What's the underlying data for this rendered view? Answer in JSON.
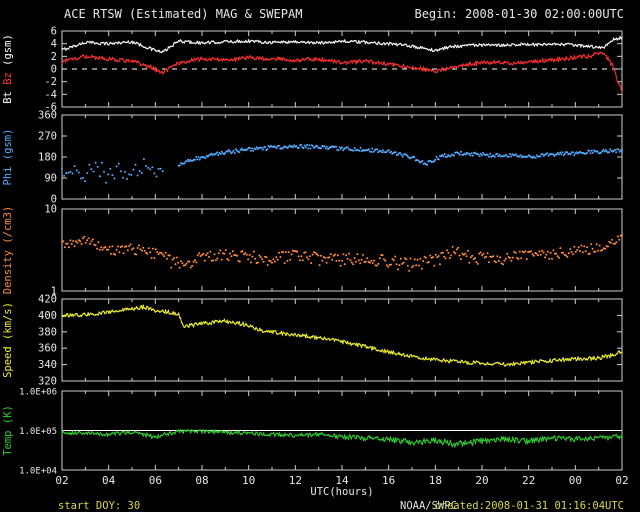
{
  "header": {
    "title": "ACE RTSW (Estimated) MAG & SWEPAM",
    "begin": "Begin: 2008-01-30 02:00:00UTC"
  },
  "footer": {
    "start_doy": "start DOY: 30",
    "source": "NOAA/SWPC",
    "created": "created:2008-01-31 01:16:04UTC"
  },
  "x_axis": {
    "label": "UTC(hours)",
    "min": 2,
    "max": 26,
    "tick_step": 2,
    "tick_labels": [
      "02",
      "04",
      "06",
      "08",
      "10",
      "12",
      "14",
      "16",
      "18",
      "20",
      "22",
      "00",
      "02"
    ]
  },
  "colors": {
    "background": "#000000",
    "axis": "#cfcfcf",
    "bt": "#f5f5f5",
    "bz": "#ff3030",
    "phi": "#55aaff",
    "density": "#ff8c3a",
    "speed": "#f0f030",
    "temp": "#33cc33"
  },
  "chart_data": [
    {
      "id": "bt_bz",
      "type": "line",
      "scale": "linear",
      "ylim": [
        -6,
        6
      ],
      "yticks": [
        {
          "v": 6,
          "label": "6"
        },
        {
          "v": 4,
          "label": "4"
        },
        {
          "v": 2,
          "label": "2"
        },
        {
          "v": 0,
          "label": "0"
        },
        {
          "v": -2,
          "label": "-2"
        },
        {
          "v": -4,
          "label": "-4"
        },
        {
          "v": -6,
          "label": "-6"
        }
      ],
      "axis_label_parts": [
        {
          "text": "Bt ",
          "color": "#ffffff"
        },
        {
          "text": "Bz ",
          "color": "#ff3030"
        },
        {
          "text": "(gsm)",
          "color": "#ffffff"
        }
      ],
      "reference_lines": [
        {
          "v": 0,
          "color": "#ffffff",
          "dash": "5,5"
        }
      ],
      "series": [
        {
          "name": "Bt",
          "color": "#f5f5f5",
          "style": "line",
          "segments": [
            {
              "x": [
                2,
                3,
                4,
                5,
                5.8,
                6.3,
                7,
                8,
                9,
                10,
                11,
                12,
                13,
                14,
                15,
                16,
                17,
                18,
                18.6,
                19.5,
                20.5,
                21.5,
                22.5,
                23.5,
                24.5,
                25.2,
                25.6,
                26
              ],
              "y": [
                3.0,
                4.2,
                4.0,
                4.3,
                3.2,
                2.6,
                4.4,
                4.1,
                4.3,
                4.4,
                4.2,
                4.3,
                4.1,
                4.4,
                4.2,
                4.0,
                3.6,
                2.9,
                3.5,
                3.8,
                3.7,
                3.9,
                3.8,
                3.9,
                3.6,
                3.3,
                4.6,
                5.0
              ],
              "noise": 0.22
            }
          ]
        },
        {
          "name": "Bz",
          "color": "#ff3030",
          "style": "line",
          "segments": [
            {
              "x": [
                2,
                3,
                4,
                5,
                5.8,
                6.3,
                7,
                8,
                9,
                10,
                11,
                12,
                13,
                14,
                15,
                16,
                17,
                18,
                18.6,
                19.5,
                20.5,
                21.5,
                22.5,
                23.5,
                24.5,
                25.2,
                25.6,
                26
              ],
              "y": [
                1.2,
                2.0,
                1.6,
                1.2,
                0.3,
                -0.6,
                1.0,
                1.6,
                1.4,
                1.8,
                1.6,
                1.4,
                1.6,
                1.0,
                1.2,
                0.8,
                0.3,
                -0.4,
                0.2,
                0.8,
                1.1,
                0.9,
                1.3,
                1.6,
                2.0,
                2.6,
                0.5,
                -3.8
              ],
              "noise": 0.3
            }
          ]
        }
      ]
    },
    {
      "id": "phi",
      "type": "scatter",
      "scale": "linear",
      "ylim": [
        0,
        360
      ],
      "yticks": [
        {
          "v": 360,
          "label": "360"
        },
        {
          "v": 270,
          "label": "270"
        },
        {
          "v": 180,
          "label": "180"
        },
        {
          "v": 90,
          "label": "90"
        },
        {
          "v": 0,
          "label": "0"
        }
      ],
      "axis_label_parts": [
        {
          "text": "Phi (gsm)",
          "color": "#55aaff"
        }
      ],
      "reference_lines": [],
      "series": [
        {
          "name": "Phi",
          "color": "#55aaff",
          "style": "dots",
          "segments": [
            {
              "x": [
                2,
                2.5,
                3,
                3.5,
                4,
                4.5,
                5,
                5.5,
                6,
                6.4
              ],
              "y": [
                100,
                130,
                110,
                140,
                95,
                125,
                105,
                135,
                90,
                115
              ],
              "noise": 38,
              "step": 0.09
            },
            {
              "x": [
                7,
                8,
                9,
                10,
                11,
                12,
                13,
                14,
                15,
                16,
                17,
                17.6,
                18.2,
                19,
                20,
                21,
                22,
                23,
                24,
                25,
                26
              ],
              "y": [
                150,
                180,
                200,
                212,
                220,
                226,
                222,
                216,
                212,
                202,
                178,
                150,
                180,
                195,
                190,
                186,
                182,
                190,
                196,
                202,
                210
              ],
              "noise": 8,
              "step": 0.05
            }
          ]
        }
      ]
    },
    {
      "id": "density",
      "type": "scatter",
      "scale": "log",
      "ylim": [
        1,
        10
      ],
      "yticks": [
        {
          "v": 10,
          "label": "10"
        },
        {
          "v": 1,
          "label": "1"
        }
      ],
      "axis_label_parts": [
        {
          "text": "Density (/cm3)",
          "color": "#ff8c3a"
        }
      ],
      "reference_lines": [],
      "series": [
        {
          "name": "Density",
          "color": "#ff8c3a",
          "style": "dots",
          "segments": [
            {
              "x": [
                2,
                3,
                4,
                5,
                6,
                7,
                8,
                9,
                10,
                11,
                12,
                13,
                14,
                15,
                16,
                17,
                18,
                18.8,
                19.5,
                20.5,
                21.5,
                22.5,
                23.5,
                24.5,
                25.5,
                26
              ],
              "y": [
                3.6,
                4.2,
                3.1,
                3.3,
                2.8,
                2.1,
                2.6,
                2.8,
                2.6,
                2.5,
                2.7,
                2.5,
                2.4,
                2.5,
                2.3,
                2.1,
                2.3,
                3.1,
                2.6,
                2.4,
                2.6,
                2.8,
                3.0,
                3.2,
                3.8,
                4.6
              ],
              "noise": 0.45,
              "step": 0.06
            }
          ]
        }
      ]
    },
    {
      "id": "speed",
      "type": "line",
      "scale": "linear",
      "ylim": [
        320,
        420
      ],
      "yticks": [
        {
          "v": 420,
          "label": "420"
        },
        {
          "v": 400,
          "label": "400"
        },
        {
          "v": 380,
          "label": "380"
        },
        {
          "v": 360,
          "label": "360"
        },
        {
          "v": 340,
          "label": "340"
        },
        {
          "v": 320,
          "label": "320"
        }
      ],
      "axis_label_parts": [
        {
          "text": "Speed (km/s)",
          "color": "#f0f030"
        }
      ],
      "reference_lines": [],
      "series": [
        {
          "name": "Speed",
          "color": "#f0f030",
          "style": "line",
          "segments": [
            {
              "x": [
                2,
                3,
                4,
                5,
                5.5,
                6,
                6.5,
                7,
                7.2,
                8,
                9,
                10,
                10.5,
                11,
                12,
                13,
                14,
                15,
                16,
                17,
                18,
                19,
                20,
                21,
                22,
                23,
                24,
                25,
                25.7,
                26
              ],
              "y": [
                400,
                401,
                404,
                408,
                410,
                406,
                404,
                402,
                386,
                390,
                393,
                388,
                382,
                380,
                376,
                373,
                368,
                362,
                355,
                350,
                346,
                343,
                342,
                340,
                343,
                345,
                347,
                348,
                352,
                356
              ],
              "noise": 2.2
            }
          ]
        }
      ]
    },
    {
      "id": "temp",
      "type": "line",
      "scale": "log",
      "ylim": [
        10000,
        1000000
      ],
      "yticks": [
        {
          "v": 1000000,
          "label": "1.0E+06"
        },
        {
          "v": 100000,
          "label": "1.0E+05"
        },
        {
          "v": 10000,
          "label": "1.0E+04"
        }
      ],
      "axis_label_parts": [
        {
          "text": "Temp (K)",
          "color": "#33cc33"
        }
      ],
      "reference_lines": [
        {
          "v": 100000,
          "color": "#ffffff",
          "dash": ""
        }
      ],
      "series": [
        {
          "name": "Temp",
          "color": "#33cc33",
          "style": "line",
          "segments": [
            {
              "x": [
                2,
                3,
                4,
                5,
                6,
                7,
                8,
                9,
                10,
                11,
                12,
                13,
                14,
                15,
                16,
                17,
                18,
                19,
                20,
                21,
                22,
                23,
                24,
                25,
                26
              ],
              "y": [
                90000,
                85000,
                80000,
                90000,
                70000,
                95000,
                95000,
                90000,
                85000,
                80000,
                75000,
                80000,
                70000,
                65000,
                60000,
                50000,
                55000,
                45000,
                55000,
                60000,
                55000,
                65000,
                60000,
                65000,
                70000
              ],
              "noise": 9000
            }
          ]
        }
      ]
    }
  ]
}
